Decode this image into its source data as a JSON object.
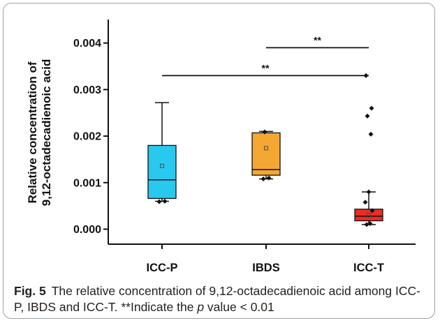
{
  "chart_data": {
    "type": "box",
    "ylabel_line1": "Relative concentration of",
    "ylabel_line2": "9,12-octadecadienoic acid",
    "ylim": [
      -0.0004,
      0.0045
    ],
    "yticks": [
      0.0,
      0.001,
      0.002,
      0.003,
      0.004
    ],
    "ytick_labels": [
      "0.000",
      "0.001",
      "0.002",
      "0.003",
      "0.004"
    ],
    "categories": [
      "ICC-P",
      "IBDS",
      "ICC-T"
    ],
    "boxes": [
      {
        "name": "ICC-P",
        "color": "#29c9ef",
        "whisker_low": 0.0006,
        "q1": 0.00066,
        "median": 0.00106,
        "q3": 0.0018,
        "whisker_high": 0.00272,
        "mean": 0.00136,
        "points": [
          0.00059,
          0.0006
        ]
      },
      {
        "name": "IBDS",
        "color": "#f5a733",
        "whisker_low": 0.00108,
        "q1": 0.00116,
        "median": 0.00128,
        "q3": 0.00207,
        "whisker_high": 0.0021,
        "mean": 0.00174,
        "points": [
          0.00108,
          0.0011,
          0.00209
        ]
      },
      {
        "name": "ICC-T",
        "color": "#ee2b24",
        "whisker_low": 0.0001,
        "q1": 0.00018,
        "median": 0.00028,
        "q3": 0.00043,
        "whisker_high": 0.0008,
        "mean": 0.0003,
        "points": [
          0.0033,
          0.0026,
          0.00243,
          0.00204,
          0.0008,
          0.00058,
          0.0004,
          0.00012,
          0.0001
        ]
      }
    ],
    "significance": [
      {
        "from": "IBDS",
        "to": "ICC-T",
        "y": 0.0039,
        "label": "**"
      },
      {
        "from": "ICC-P",
        "to": "ICC-T",
        "y": 0.0033,
        "label": "**"
      }
    ]
  },
  "caption": {
    "fig_label": "Fig. 5",
    "text_before_p": "The relative concentration of 9,12-octadecadienoic acid among ICC-P, IBDS and ICC-T. **Indicate the ",
    "p_symbol": "p",
    "text_after_p": " value < 0.01"
  }
}
